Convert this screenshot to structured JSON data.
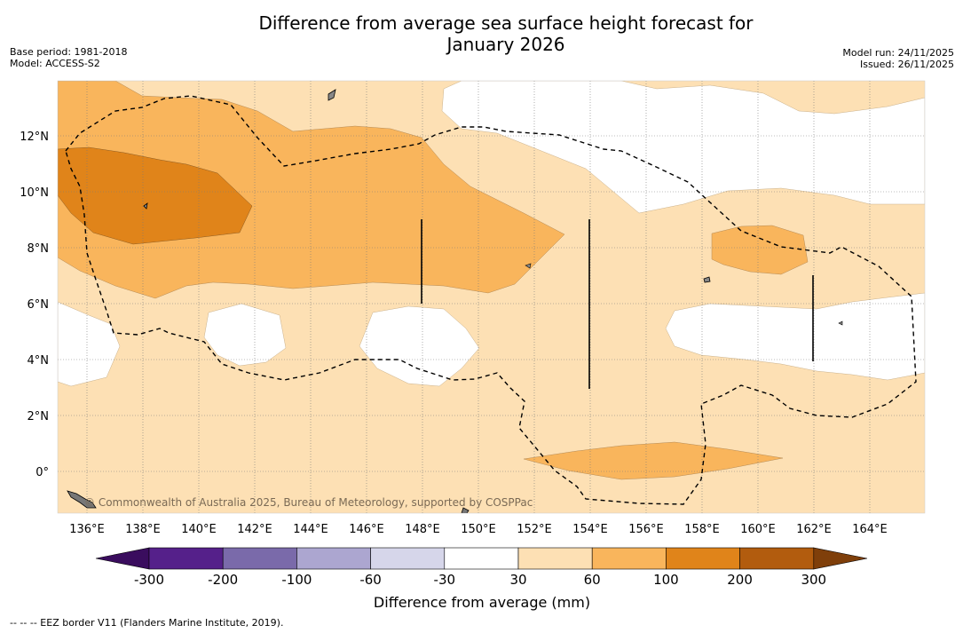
{
  "header": {
    "title_line1": "Difference from average sea surface height forecast for",
    "title_line2": "January 2026",
    "base_period": "Base period: 1981-2018",
    "model": "Model: ACCESS-S2",
    "model_run": "Model run: 24/11/2025",
    "issued": "Issued: 26/11/2025"
  },
  "map": {
    "lat_labels": [
      "12°N",
      "10°N",
      "8°N",
      "6°N",
      "4°N",
      "2°N",
      "0°"
    ],
    "lon_labels": [
      "136°E",
      "138°E",
      "140°E",
      "142°E",
      "144°E",
      "146°E",
      "148°E",
      "150°E",
      "152°E",
      "154°E",
      "156°E",
      "158°E",
      "160°E",
      "162°E",
      "164°E"
    ],
    "credit": "© Commonwealth of Australia 2025, Bureau of Meteorology, supported by COSPPac"
  },
  "colorbar": {
    "ticks": [
      "-300",
      "-200",
      "-100",
      "-60",
      "-30",
      "30",
      "60",
      "100",
      "200",
      "300"
    ],
    "colors": [
      "#3a0d5e",
      "#55208a",
      "#7a6aaa",
      "#aca6d0",
      "#d6d6ea",
      "#ffffff",
      "#fde0b4",
      "#f9b55c",
      "#e0841a",
      "#b25c0e",
      "#7f3f0a"
    ],
    "title": "Difference from average (mm)"
  },
  "footnote": "--  --  -- EEZ border V11 (Flanders Marine Institute, 2019)."
}
